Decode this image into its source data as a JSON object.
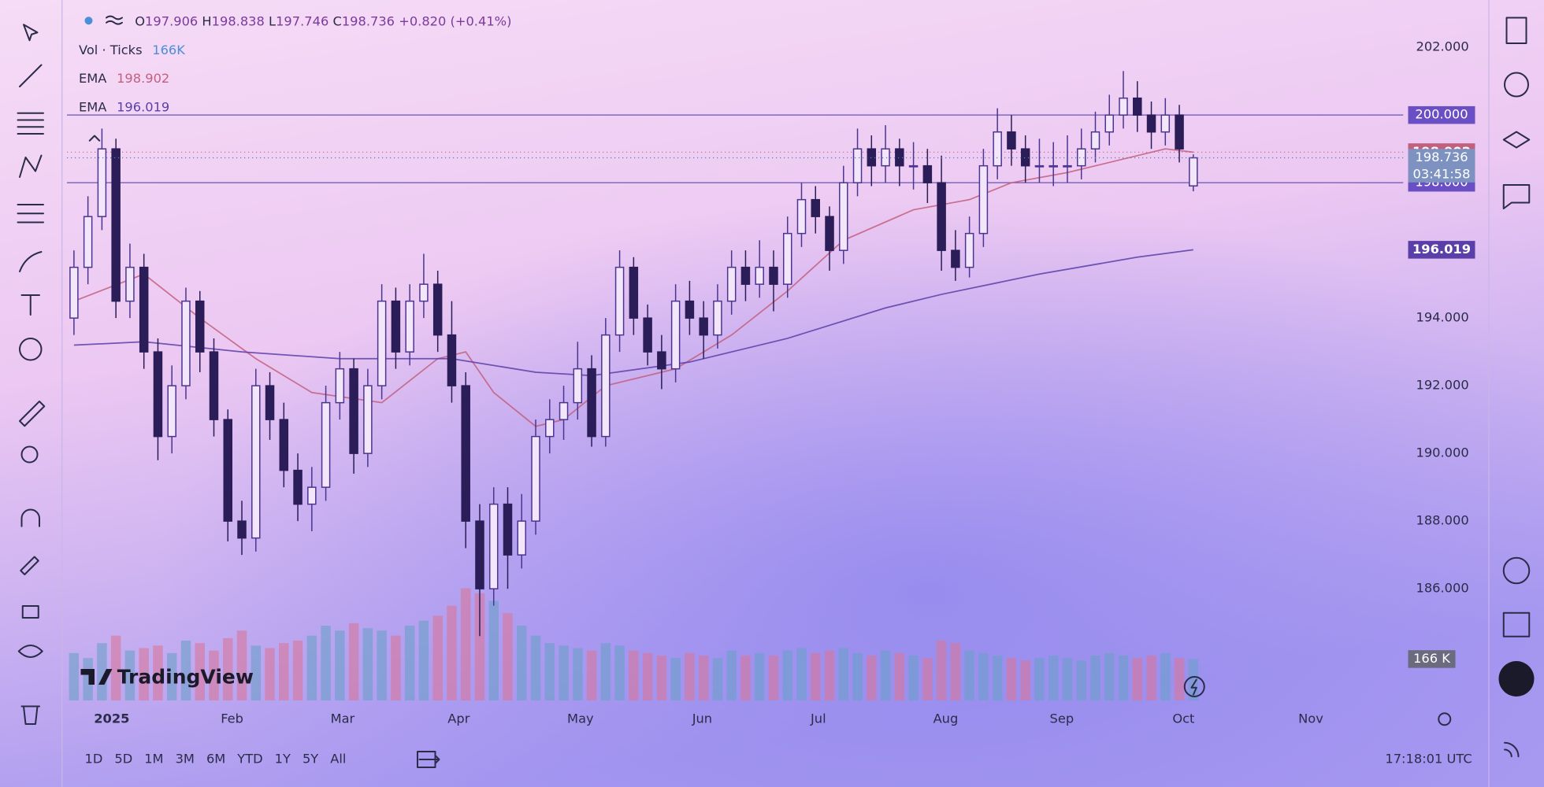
{
  "chart_data": {
    "type": "candlestick",
    "legend_header": {
      "open_label": "O",
      "open": 197.906,
      "high_label": "H",
      "high": 198.838,
      "low_label": "L",
      "low": 197.746,
      "close_label": "C",
      "close": 198.736,
      "change": {
        "value": 0.82,
        "label": "+0.820"
      },
      "change_pct": {
        "value": 0.41,
        "label": "(+0.41%)"
      }
    },
    "volume_legend": {
      "name": "Vol · Ticks",
      "value": "166K"
    },
    "open": [
      194.0,
      195.5,
      197.0,
      199.0,
      194.5,
      195.5,
      193.0,
      190.5,
      192.0,
      194.5,
      193.0,
      191.0,
      188.0,
      187.5,
      192.0,
      191.0,
      189.5,
      188.5,
      189.0,
      191.5,
      192.5,
      190.0,
      192.0,
      194.5,
      193.0,
      194.5,
      195.0,
      193.5,
      192.0,
      188.0,
      186.0,
      188.5,
      187.0,
      188.0,
      190.5,
      191.0,
      191.5,
      192.5,
      190.5,
      193.5,
      195.5,
      194.0,
      193.0,
      192.5,
      194.5,
      194.0,
      193.5,
      194.5,
      195.5,
      195.0,
      195.5,
      195.0,
      196.5,
      197.5,
      197.0,
      196.0,
      198.0,
      199.0,
      198.5,
      199.0,
      198.5,
      198.5,
      198.0,
      196.0,
      195.5,
      196.5,
      198.5,
      199.5,
      199.0,
      198.5,
      198.5,
      198.5,
      198.5,
      199.0,
      199.5,
      200.0,
      200.5,
      200.0,
      199.5,
      200.0,
      197.906
    ],
    "high": [
      196.0,
      197.6,
      199.6,
      199.3,
      196.2,
      195.9,
      193.4,
      192.6,
      194.9,
      194.8,
      193.4,
      191.3,
      188.6,
      192.5,
      192.4,
      191.5,
      190.0,
      189.6,
      192.0,
      193.0,
      192.8,
      192.5,
      195.0,
      194.9,
      195.0,
      195.9,
      195.4,
      194.5,
      192.4,
      188.5,
      189.0,
      189.0,
      188.8,
      191.0,
      191.6,
      192.0,
      193.3,
      192.9,
      194.0,
      196.0,
      195.8,
      194.4,
      193.5,
      195.0,
      195.1,
      194.5,
      195.0,
      196.0,
      196.0,
      196.3,
      196.0,
      197.0,
      198.0,
      197.9,
      197.3,
      198.5,
      199.6,
      199.4,
      199.7,
      199.3,
      199.2,
      199.0,
      198.8,
      196.6,
      197.0,
      199.0,
      200.2,
      200.0,
      199.4,
      199.3,
      199.2,
      199.4,
      199.6,
      200.1,
      200.6,
      201.3,
      201.0,
      200.4,
      200.5,
      200.3,
      198.838
    ],
    "low": [
      193.5,
      195.0,
      196.6,
      194.0,
      194.0,
      192.5,
      189.8,
      190.0,
      191.6,
      192.4,
      190.5,
      187.4,
      187.0,
      187.1,
      190.4,
      189.0,
      188.0,
      187.7,
      188.6,
      191.0,
      189.4,
      189.6,
      191.6,
      192.5,
      192.6,
      194.0,
      193.0,
      191.5,
      187.2,
      184.6,
      185.5,
      186.0,
      186.6,
      187.6,
      190.0,
      190.4,
      191.0,
      190.2,
      190.2,
      193.0,
      193.5,
      192.6,
      191.9,
      192.1,
      193.5,
      192.8,
      193.1,
      194.1,
      194.5,
      194.6,
      194.2,
      194.6,
      196.1,
      196.5,
      195.4,
      195.6,
      197.6,
      197.9,
      198.0,
      197.9,
      197.8,
      197.4,
      195.4,
      195.1,
      195.2,
      196.1,
      198.1,
      198.5,
      198.0,
      198.0,
      197.9,
      198.0,
      198.1,
      198.6,
      199.1,
      199.6,
      199.5,
      199.0,
      199.1,
      198.6,
      197.746
    ],
    "close": [
      195.5,
      197.0,
      199.0,
      194.5,
      195.5,
      193.0,
      190.5,
      192.0,
      194.5,
      193.0,
      191.0,
      188.0,
      187.5,
      192.0,
      191.0,
      189.5,
      188.5,
      189.0,
      191.5,
      192.5,
      190.0,
      192.0,
      194.5,
      193.0,
      194.5,
      195.0,
      193.5,
      192.0,
      188.0,
      186.0,
      188.5,
      187.0,
      188.0,
      190.5,
      191.0,
      191.5,
      192.5,
      190.5,
      193.5,
      195.5,
      194.0,
      193.0,
      192.5,
      194.5,
      194.0,
      193.5,
      194.5,
      195.5,
      195.0,
      195.5,
      195.0,
      196.5,
      197.5,
      197.0,
      196.0,
      198.0,
      199.0,
      198.5,
      199.0,
      198.5,
      198.5,
      198.0,
      196.0,
      195.5,
      196.5,
      198.5,
      199.5,
      199.0,
      198.5,
      198.5,
      198.5,
      198.5,
      199.0,
      199.5,
      200.0,
      200.5,
      200.0,
      199.5,
      200.0,
      199.0,
      198.736
    ],
    "volume": [
      190000,
      170000,
      230000,
      260000,
      200000,
      210000,
      220000,
      190000,
      240000,
      230000,
      200000,
      250000,
      280000,
      220000,
      210000,
      230000,
      240000,
      260000,
      300000,
      280000,
      310000,
      290000,
      280000,
      260000,
      300000,
      320000,
      340000,
      380000,
      450000,
      430000,
      400000,
      350000,
      300000,
      260000,
      230000,
      220000,
      210000,
      200000,
      230000,
      220000,
      200000,
      190000,
      180000,
      170000,
      190000,
      180000,
      170000,
      200000,
      180000,
      190000,
      180000,
      200000,
      210000,
      190000,
      200000,
      210000,
      190000,
      180000,
      200000,
      190000,
      180000,
      170000,
      240000,
      230000,
      200000,
      190000,
      180000,
      170000,
      160000,
      170000,
      180000,
      170000,
      160000,
      180000,
      190000,
      180000,
      170000,
      180000,
      190000,
      170000,
      166000
    ],
    "up_color": "#4a3590",
    "down_color": "#2a1d58",
    "volume_up_color": "#6aa0c8",
    "volume_down_color": "#d8769a",
    "xlim": [
      -0.5,
      95
    ],
    "xticks": [
      {
        "value": 2.7,
        "label": "2025"
      },
      {
        "value": 11.3,
        "label": "Feb"
      },
      {
        "value": 19.2,
        "label": "Mar"
      },
      {
        "value": 27.5,
        "label": "Apr"
      },
      {
        "value": 36.2,
        "label": "May"
      },
      {
        "value": 44.9,
        "label": "Jun"
      },
      {
        "value": 53.2,
        "label": "Jul"
      },
      {
        "value": 62.3,
        "label": "Aug"
      },
      {
        "value": 70.6,
        "label": "Sep"
      },
      {
        "value": 79.3,
        "label": "Oct"
      },
      {
        "value": 88.4,
        "label": "Nov"
      }
    ],
    "ylim": [
      182.7,
      203.4
    ],
    "yticks": [
      {
        "value": 186,
        "label": "186.000"
      },
      {
        "value": 188,
        "label": "188.000"
      },
      {
        "value": 190,
        "label": "190.000"
      },
      {
        "value": 192,
        "label": "192.000"
      },
      {
        "value": 194,
        "label": "194.000"
      },
      {
        "value": 202,
        "label": "202.000"
      }
    ],
    "vlim": [
      0,
      600000
    ],
    "vticks": [
      {
        "value": 166000,
        "label": "166 K"
      }
    ],
    "hlines": [
      {
        "value": 200,
        "label": "200.000"
      },
      {
        "value": 198,
        "label": "198.000"
      }
    ],
    "countdown": "03:41:58",
    "ema": [
      {
        "name": "EMA",
        "color": "#c2607f",
        "x": [
          0,
          5,
          9,
          13,
          17,
          22,
          26,
          28,
          30,
          33,
          35,
          38,
          43,
          47,
          51,
          55,
          60,
          64,
          67,
          71,
          75,
          78,
          80
        ],
        "values": [
          194.5,
          195.3,
          194.0,
          192.8,
          191.8,
          191.5,
          192.8,
          193.0,
          191.8,
          190.8,
          191.0,
          192.0,
          192.5,
          193.5,
          194.8,
          196.3,
          197.2,
          197.5,
          198.0,
          198.3,
          198.7,
          199.0,
          198.902
        ]
      },
      {
        "name": "EMA",
        "color": "#5a3fa8",
        "x": [
          0,
          5,
          12,
          19,
          27,
          33,
          37,
          44,
          51,
          58,
          62,
          69,
          76,
          80
        ],
        "values": [
          193.2,
          193.3,
          193.0,
          192.8,
          192.8,
          192.4,
          192.3,
          192.7,
          193.4,
          194.3,
          194.7,
          195.3,
          195.8,
          196.019
        ]
      }
    ]
  },
  "toolbar": {
    "ranges": [
      "1D",
      "5D",
      "1M",
      "3M",
      "6M",
      "YTD",
      "1Y",
      "5Y",
      "All"
    ],
    "clock": "17:18:01 UTC"
  },
  "brand": "TradingView"
}
